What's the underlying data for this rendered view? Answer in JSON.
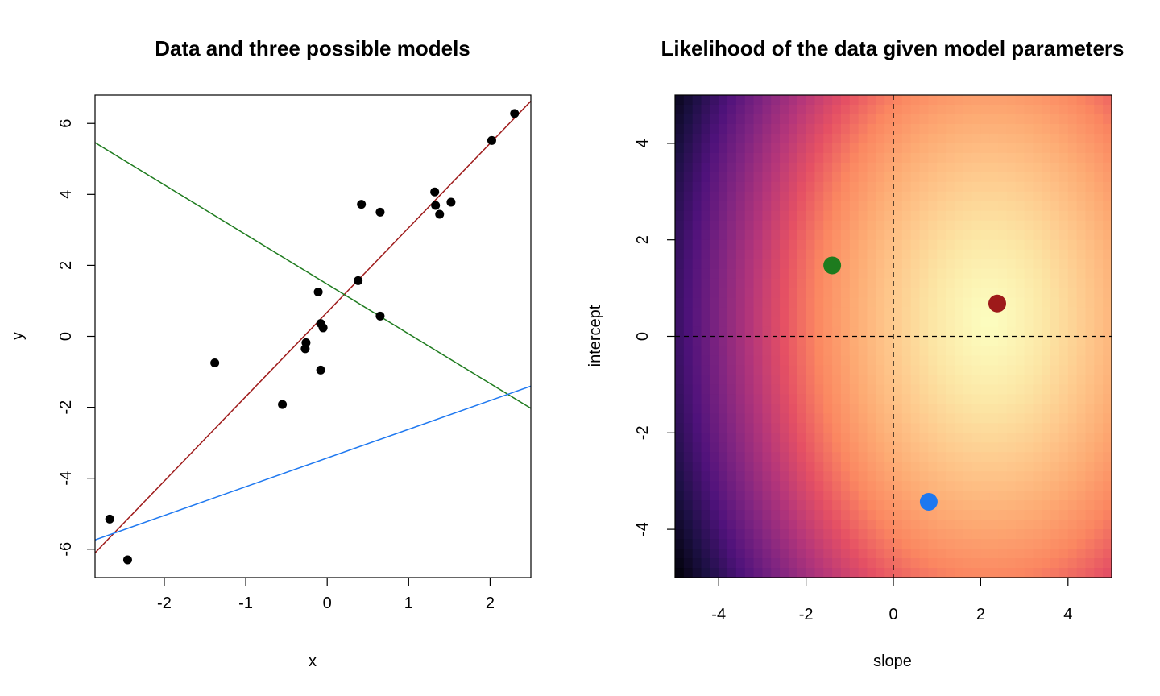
{
  "chart_data": [
    {
      "type": "scatter",
      "title": "Data and three possible models",
      "xlabel": "x",
      "ylabel": "y",
      "xlim": [
        -2.85,
        2.5
      ],
      "ylim": [
        -6.8,
        6.8
      ],
      "xticks": [
        "-2",
        "-1",
        "0",
        "1",
        "2"
      ],
      "xtick_values": [
        -2,
        -1,
        0,
        1,
        2
      ],
      "yticks": [
        "-6",
        "-4",
        "-2",
        "0",
        "2",
        "4",
        "6"
      ],
      "ytick_values": [
        -6,
        -4,
        -2,
        0,
        2,
        4,
        6
      ],
      "grid": false,
      "points": [
        {
          "x": -2.67,
          "y": -5.15
        },
        {
          "x": -2.45,
          "y": -6.3
        },
        {
          "x": -1.38,
          "y": -0.75
        },
        {
          "x": -0.55,
          "y": -1.92
        },
        {
          "x": -0.27,
          "y": -0.35
        },
        {
          "x": -0.26,
          "y": -0.18
        },
        {
          "x": -0.11,
          "y": 1.25
        },
        {
          "x": -0.08,
          "y": 0.36
        },
        {
          "x": -0.08,
          "y": -0.95
        },
        {
          "x": -0.05,
          "y": 0.24
        },
        {
          "x": 0.38,
          "y": 1.57
        },
        {
          "x": 0.42,
          "y": 3.72
        },
        {
          "x": 0.65,
          "y": 0.57
        },
        {
          "x": 0.65,
          "y": 3.5
        },
        {
          "x": 1.32,
          "y": 4.07
        },
        {
          "x": 1.33,
          "y": 3.69
        },
        {
          "x": 1.38,
          "y": 3.44
        },
        {
          "x": 1.52,
          "y": 3.78
        },
        {
          "x": 2.02,
          "y": 5.52
        },
        {
          "x": 2.3,
          "y": 6.28
        }
      ],
      "lines": [
        {
          "slope": 2.38,
          "intercept": 0.68,
          "color": "#9E1A1A"
        },
        {
          "slope": -1.4,
          "intercept": 1.47,
          "color": "#1E7B1E"
        },
        {
          "slope": 0.81,
          "intercept": -3.43,
          "color": "#1E78F0"
        }
      ]
    },
    {
      "type": "heatmap",
      "title": "Likelihood of the data given model parameters",
      "xlabel": "slope",
      "ylabel": "intercept",
      "xlim": [
        -5,
        5
      ],
      "ylim": [
        -5,
        5
      ],
      "xticks": [
        "-4",
        "-2",
        "0",
        "2",
        "4"
      ],
      "xtick_values": [
        -4,
        -2,
        0,
        2,
        4
      ],
      "yticks": [
        "-4",
        "-2",
        "0",
        "2",
        "4"
      ],
      "ytick_values": [
        -4,
        -2,
        0,
        2,
        4
      ],
      "colormap": "magma",
      "peak": {
        "slope": 2.2,
        "intercept": 0.35
      },
      "reference_lines": {
        "slope": 0,
        "intercept": 0
      },
      "points": [
        {
          "slope": -1.4,
          "intercept": 1.47,
          "color": "#1E7B1E"
        },
        {
          "slope": 2.38,
          "intercept": 0.68,
          "color": "#9E1A1A"
        },
        {
          "slope": 0.81,
          "intercept": -3.43,
          "color": "#1E78F0"
        }
      ]
    }
  ]
}
